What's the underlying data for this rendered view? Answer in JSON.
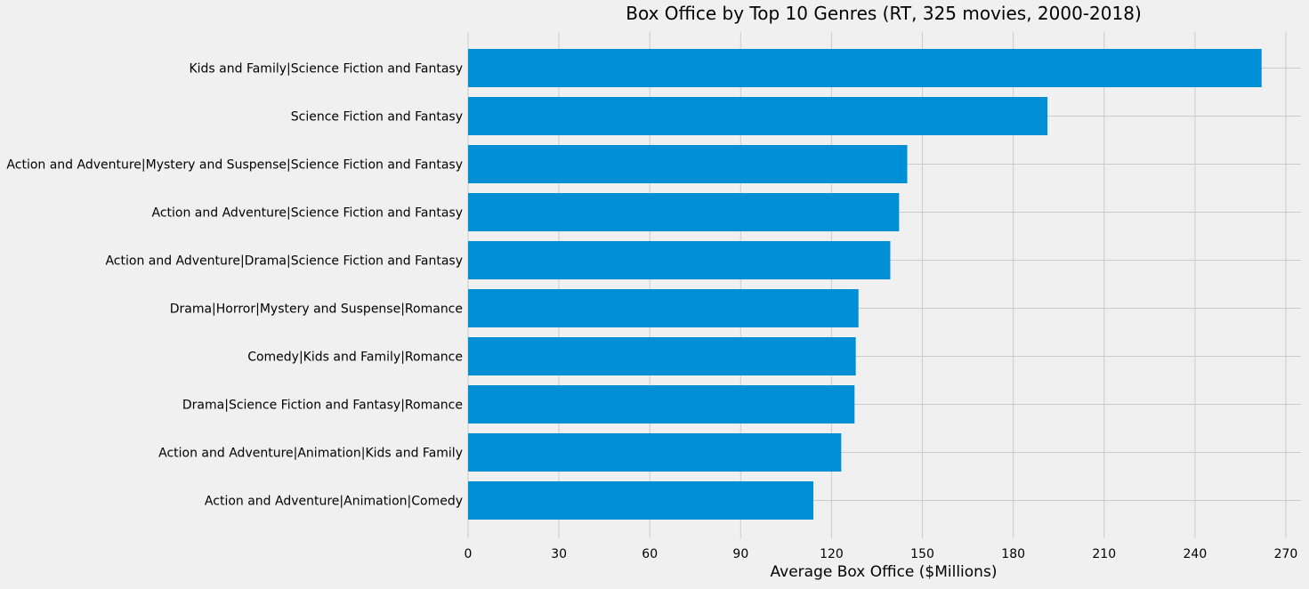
{
  "chart_data": {
    "type": "bar",
    "orientation": "horizontal",
    "title": "Box Office by Top 10 Genres (RT, 325 movies, 2000-2018)",
    "xlabel": "Average Box Office ($Millions)",
    "ylabel": "",
    "xlim": [
      0,
      275
    ],
    "xticks": [
      0,
      30,
      60,
      90,
      120,
      150,
      180,
      210,
      240,
      270
    ],
    "grid": true,
    "bar_color": "#008fd5",
    "background": "#f0f0f0",
    "grid_color": "#cbcbcb",
    "categories": [
      "Kids and Family|Science Fiction and Fantasy",
      "Science Fiction and Fantasy",
      "Action and Adventure|Mystery and Suspense|Science Fiction and Fantasy",
      "Action and Adventure|Science Fiction and Fantasy",
      "Action and Adventure|Drama|Science Fiction and Fantasy",
      "Drama|Horror|Mystery and Suspense|Romance",
      "Comedy|Kids and Family|Romance",
      "Drama|Science Fiction and Fantasy|Romance",
      "Action and Adventure|Animation|Kids and Family",
      "Action and Adventure|Animation|Comedy"
    ],
    "values": [
      262.0,
      191.3,
      145.0,
      142.3,
      139.4,
      128.9,
      128.0,
      127.6,
      123.2,
      114.0
    ]
  }
}
